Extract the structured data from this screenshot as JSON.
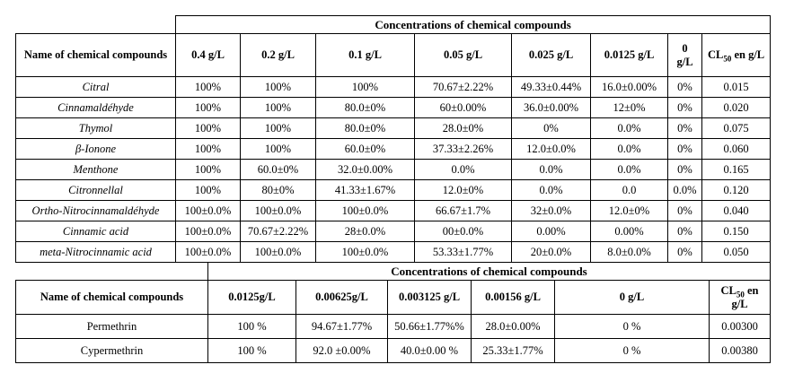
{
  "table1": {
    "top_header": "Concentrations of chemical compounds",
    "name_header": "Name of chemical compounds",
    "col_headers": [
      "0.4 g/L",
      "0.2 g/L",
      "0.1 g/L",
      "0.05 g/L",
      "0.025 g/L",
      "0.0125 g/L",
      "0 g/L"
    ],
    "cl50": {
      "pre": "CL",
      "sub": "50",
      "post": "en g/L"
    },
    "rows": [
      {
        "name": "Citral",
        "values": [
          "100%",
          "100%",
          "100%",
          "70.67±2.22%",
          "49.33±0.44%",
          "16.0±0.00%",
          "0%",
          "0.015"
        ]
      },
      {
        "name": "Cinnamaldéhyde",
        "values": [
          "100%",
          "100%",
          "80.0±0%",
          "60±0.00%",
          "36.0±0.00%",
          "12±0%",
          "0%",
          "0.020"
        ]
      },
      {
        "name": "Thymol",
        "values": [
          "100%",
          "100%",
          "80.0±0%",
          "28.0±0%",
          "0%",
          "0.0%",
          "0%",
          "0.075"
        ]
      },
      {
        "name": "β-Ionone",
        "values": [
          "100%",
          "100%",
          "60.0±0%",
          "37.33±2.26%",
          "12.0±0.0%",
          "0.0%",
          "0%",
          "0.060"
        ]
      },
      {
        "name": "Menthone",
        "values": [
          "100%",
          "60.0±0%",
          "32.0±0.00%",
          "0.0%",
          "0.0%",
          "0.0%",
          "0%",
          "0.165"
        ]
      },
      {
        "name": "Citronnellal",
        "values": [
          "100%",
          "80±0%",
          "41.33±1.67%",
          "12.0±0%",
          "0.0%",
          "0.0",
          "0.0%",
          "0.120"
        ]
      },
      {
        "name": "Ortho-Nitrocinnamaldéhyde",
        "values": [
          "100±0.0%",
          "100±0.0%",
          "100±0.0%",
          "66.67±1.7%",
          "32±0.0%",
          "12.0±0%",
          "0%",
          "0.040"
        ]
      },
      {
        "name": "Cinnamic acid",
        "values": [
          "100±0.0%",
          "70.67±2.22%",
          "28±0.0%",
          "00±0.0%",
          "0.00%",
          "0.00%",
          "0%",
          "0.150"
        ]
      },
      {
        "name": "meta-Nitrocinnamic acid",
        "values": [
          "100±0.0%",
          "100±0.0%",
          "100±0.0%",
          "53.33±1.77%",
          "20±0.0%",
          "8.0±0.0%",
          "0%",
          "0.050"
        ]
      }
    ]
  },
  "table2": {
    "top_header": "Concentrations of chemical compounds",
    "name_header": "Name of chemical compounds",
    "col_headers": [
      "0.0125g/L",
      "0.00625g/L",
      "0.003125 g/L",
      "0.00156 g/L",
      "0 g/L"
    ],
    "cl50": {
      "pre": "CL",
      "sub": "50",
      "post": "en g/L"
    },
    "rows": [
      {
        "name": "Permethrin",
        "values": [
          "100 %",
          "94.67±1.77%",
          "50.66±1.77%%",
          "28.0±0.00%",
          "0 %",
          "0.00300"
        ]
      },
      {
        "name": "Cypermethrin",
        "values": [
          "100 %",
          "92.0 ±0.00%",
          "40.0±0.00 %",
          "25.33±1.77%",
          "0 %",
          "0.00380"
        ]
      }
    ]
  }
}
